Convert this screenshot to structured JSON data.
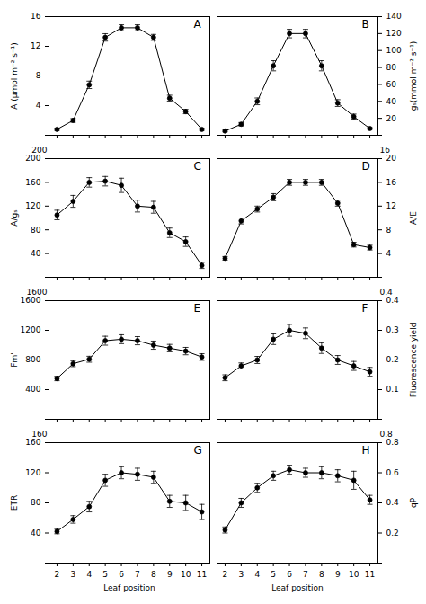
{
  "chart_data": [
    {
      "type": "line",
      "x": [
        2,
        3,
        4,
        5,
        6,
        7,
        8,
        9,
        10,
        11
      ],
      "values": [
        0.8,
        2.0,
        6.8,
        13.2,
        14.5,
        14.5,
        13.2,
        5.0,
        3.2,
        0.8
      ],
      "yerr": [
        0.15,
        0.25,
        0.5,
        0.5,
        0.4,
        0.4,
        0.4,
        0.4,
        0.3,
        0.15
      ],
      "ylabel": "A (μmol m⁻² s⁻¹)",
      "xlim": [
        1.5,
        11.5
      ],
      "xticks": [
        2,
        3,
        4,
        5,
        6,
        7,
        8,
        9,
        10,
        11
      ],
      "ylim": [
        0,
        16
      ],
      "yticks": [
        {
          "value": 0,
          "label": ""
        },
        4,
        8,
        12,
        16
      ],
      "annotations": [
        "A"
      ],
      "color": "black",
      "marker": "circle",
      "tick_labels": "y"
    },
    {
      "type": "line",
      "x": [
        2,
        3,
        4,
        5,
        6,
        7,
        8,
        9,
        10,
        11
      ],
      "values": [
        5,
        13,
        40,
        82,
        120,
        120,
        82,
        38,
        22,
        8
      ],
      "yerr": [
        1,
        2,
        4,
        6,
        5,
        5,
        6,
        4,
        3,
        1
      ],
      "ylabel": "gₛ(mmol m⁻² s⁻¹)",
      "xlim": [
        1.5,
        11.5
      ],
      "xticks": [
        2,
        3,
        4,
        5,
        6,
        7,
        8,
        9,
        10,
        11
      ],
      "ylim": [
        0,
        140
      ],
      "yticks": [
        {
          "value": 0,
          "label": ""
        },
        20,
        40,
        60,
        80,
        100,
        120,
        140
      ],
      "annotations": [
        "B"
      ],
      "color": "black",
      "marker": "circle",
      "tick_labels": "y"
    },
    {
      "type": "line",
      "x": [
        2,
        3,
        4,
        5,
        6,
        7,
        8,
        9,
        10,
        11
      ],
      "values": [
        105,
        128,
        160,
        162,
        155,
        120,
        118,
        75,
        60,
        20
      ],
      "yerr": [
        8,
        10,
        8,
        8,
        12,
        10,
        10,
        8,
        8,
        5
      ],
      "ylabel": "A/gₛ",
      "xlim": [
        1.5,
        11.5
      ],
      "xticks": [
        2,
        3,
        4,
        5,
        6,
        7,
        8,
        9,
        10,
        11
      ],
      "ylim": [
        0,
        200
      ],
      "yticks": [
        {
          "value": 0,
          "label": ""
        },
        40,
        80,
        120,
        160,
        200
      ],
      "annotations": [
        "C",
        "200"
      ],
      "color": "black",
      "marker": "circle",
      "tick_labels": "y"
    },
    {
      "type": "line",
      "x": [
        2,
        3,
        4,
        5,
        6,
        7,
        8,
        9,
        10,
        11
      ],
      "values": [
        3.2,
        9.5,
        11.5,
        13.5,
        16.0,
        16.0,
        16.0,
        12.5,
        5.5,
        5.0
      ],
      "yerr": [
        0.3,
        0.5,
        0.5,
        0.6,
        0.5,
        0.5,
        0.5,
        0.5,
        0.4,
        0.4
      ],
      "ylabel": "A/E",
      "xlim": [
        1.5,
        11.5
      ],
      "xticks": [
        2,
        3,
        4,
        5,
        6,
        7,
        8,
        9,
        10,
        11
      ],
      "ylim": [
        0,
        20
      ],
      "yticks": [
        {
          "value": 0,
          "label": ""
        },
        4,
        8,
        12,
        16,
        20
      ],
      "annotations": [
        "D",
        "16"
      ],
      "color": "black",
      "marker": "circle",
      "tick_labels": "y"
    },
    {
      "type": "line",
      "x": [
        2,
        3,
        4,
        5,
        6,
        7,
        8,
        9,
        10,
        11
      ],
      "values": [
        550,
        750,
        810,
        1060,
        1080,
        1060,
        1000,
        960,
        920,
        840
      ],
      "yerr": [
        30,
        40,
        40,
        60,
        60,
        55,
        55,
        50,
        50,
        45
      ],
      "ylabel": "Fm'",
      "xlim": [
        1.5,
        11.5
      ],
      "xticks": [
        2,
        3,
        4,
        5,
        6,
        7,
        8,
        9,
        10,
        11
      ],
      "ylim": [
        0,
        1600
      ],
      "yticks": [
        {
          "value": 0,
          "label": ""
        },
        400,
        800,
        1200,
        1600
      ],
      "annotations": [
        "E",
        "1600"
      ],
      "color": "black",
      "marker": "circle",
      "tick_labels": "y"
    },
    {
      "type": "line",
      "x": [
        2,
        3,
        4,
        5,
        6,
        7,
        8,
        9,
        10,
        11
      ],
      "values": [
        0.14,
        0.18,
        0.2,
        0.27,
        0.3,
        0.29,
        0.24,
        0.2,
        0.18,
        0.16
      ],
      "yerr": [
        0.01,
        0.01,
        0.012,
        0.018,
        0.02,
        0.018,
        0.018,
        0.015,
        0.015,
        0.015
      ],
      "ylabel": "Fluorescence yield",
      "xlim": [
        1.5,
        11.5
      ],
      "xticks": [
        2,
        3,
        4,
        5,
        6,
        7,
        8,
        9,
        10,
        11
      ],
      "ylim": [
        0,
        0.4
      ],
      "yticks": [
        {
          "value": 0,
          "label": ""
        },
        0.1,
        0.2,
        0.3,
        0.4
      ],
      "annotations": [
        "F",
        "0.4"
      ],
      "color": "black",
      "marker": "circle",
      "tick_labels": "y"
    },
    {
      "type": "line",
      "x": [
        2,
        3,
        4,
        5,
        6,
        7,
        8,
        9,
        10,
        11
      ],
      "values": [
        42,
        58,
        75,
        110,
        120,
        118,
        114,
        82,
        80,
        68
      ],
      "yerr": [
        3,
        5,
        7,
        8,
        8,
        8,
        8,
        8,
        10,
        10
      ],
      "ylabel": "ETR",
      "xlabel": "Leaf position",
      "xlim": [
        1.5,
        11.5
      ],
      "xticks": [
        2,
        3,
        4,
        5,
        6,
        7,
        8,
        9,
        10,
        11
      ],
      "ylim": [
        0,
        160
      ],
      "yticks": [
        {
          "value": 0,
          "label": ""
        },
        40,
        80,
        120,
        160
      ],
      "annotations": [
        "G",
        "160"
      ],
      "color": "black",
      "marker": "circle"
    },
    {
      "type": "line",
      "x": [
        2,
        3,
        4,
        5,
        6,
        7,
        8,
        9,
        10,
        11
      ],
      "values": [
        0.22,
        0.4,
        0.5,
        0.58,
        0.62,
        0.6,
        0.6,
        0.58,
        0.55,
        0.42
      ],
      "yerr": [
        0.02,
        0.03,
        0.03,
        0.03,
        0.03,
        0.03,
        0.04,
        0.04,
        0.06,
        0.03
      ],
      "ylabel": "qP",
      "xlabel": "Leaf position",
      "xlim": [
        1.5,
        11.5
      ],
      "xticks": [
        2,
        3,
        4,
        5,
        6,
        7,
        8,
        9,
        10,
        11
      ],
      "ylim": [
        0,
        0.8
      ],
      "yticks": [
        {
          "value": 0,
          "label": ""
        },
        0.2,
        0.4,
        0.6,
        0.8
      ],
      "annotations": [
        "H",
        "0.8"
      ],
      "color": "black",
      "marker": "circle"
    }
  ]
}
